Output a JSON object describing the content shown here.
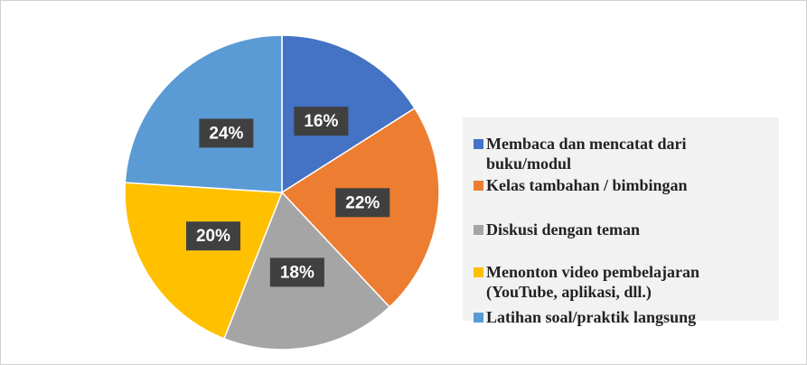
{
  "chart_data": {
    "type": "pie",
    "categories": [
      "Membaca dan mencatat dari buku/modul",
      "Kelas tambahan / bimbingan",
      "Diskusi dengan teman",
      "Menonton video pembelajaran (YouTube, aplikasi, dll.)",
      "Latihan soal/praktik langsung"
    ],
    "values": [
      16,
      22,
      18,
      20,
      24
    ],
    "value_labels": [
      "16%",
      "22%",
      "18%",
      "20%",
      "24%"
    ],
    "colors": [
      "#4472c4",
      "#ed7d31",
      "#a5a5a5",
      "#ffc000",
      "#5b9bd5"
    ],
    "legend": "right"
  }
}
